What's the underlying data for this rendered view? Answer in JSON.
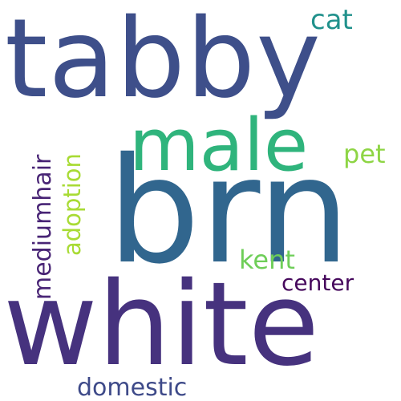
{
  "word_cloud": {
    "background": "#ffffff",
    "words": {
      "tabby": {
        "text": "tabby",
        "color": "#3e4f8a",
        "orientation": "horizontal"
      },
      "brn": {
        "text": "brn",
        "color": "#31668e",
        "orientation": "horizontal"
      },
      "white": {
        "text": "white",
        "color": "#46327e",
        "orientation": "horizontal"
      },
      "male": {
        "text": "male",
        "color": "#2fb47c",
        "orientation": "horizontal"
      },
      "cat": {
        "text": "cat",
        "color": "#21918c",
        "orientation": "horizontal"
      },
      "pet": {
        "text": "pet",
        "color": "#8ed545",
        "orientation": "horizontal"
      },
      "kent": {
        "text": "kent",
        "color": "#6ece58",
        "orientation": "horizontal"
      },
      "center": {
        "text": "center",
        "color": "#46085c",
        "orientation": "horizontal"
      },
      "domestic": {
        "text": "domestic",
        "color": "#3e4a89",
        "orientation": "horizontal"
      },
      "mediumhair": {
        "text": "mediumhair",
        "color": "#482475",
        "orientation": "vertical"
      },
      "adoption": {
        "text": "adoption",
        "color": "#a8db34",
        "orientation": "vertical"
      }
    }
  }
}
